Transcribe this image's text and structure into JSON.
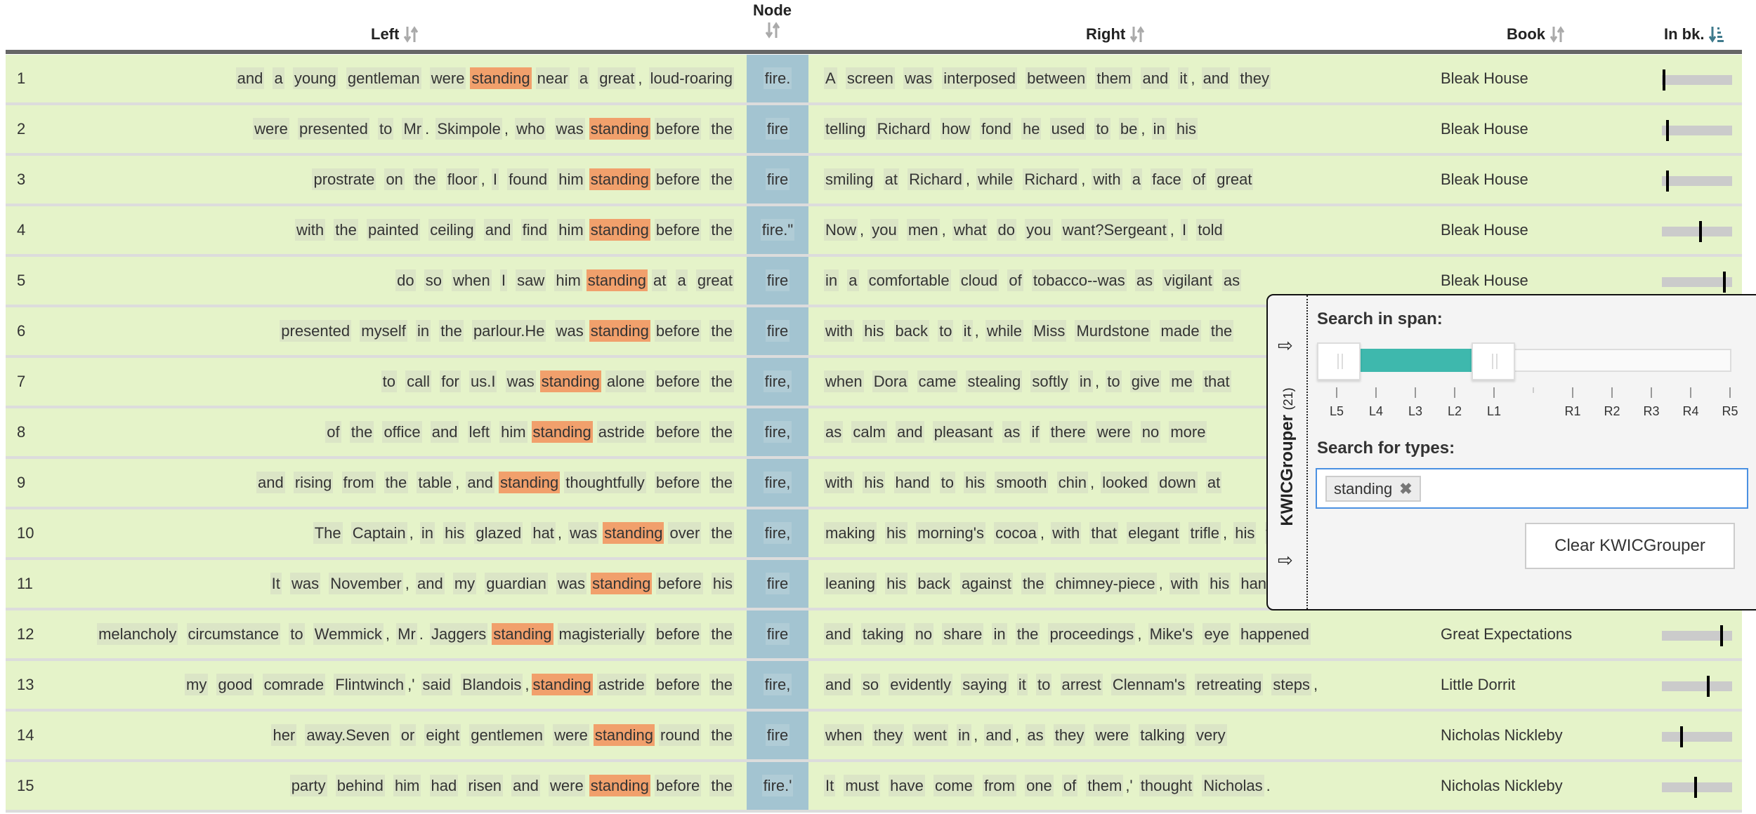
{
  "columns": {
    "left": "Left",
    "node": "Node",
    "right": "Right",
    "book": "Book",
    "in_book": "In bk."
  },
  "colors": {
    "row_bg": "#e5f3c9",
    "node_bg": "#a3c4d1",
    "keyword_bg": "#f1a06c",
    "slider_fill": "#3eb8ad",
    "input_focus": "#4a90e2"
  },
  "rows": [
    {
      "n": "1",
      "pre": "and a young gentleman were",
      "kw": "standing",
      "post": "near a great, loud-roaring",
      "node": "fire.",
      "right": "A screen was interposed between them and it, and they",
      "book": "Bleak House",
      "pos": 0.03
    },
    {
      "n": "2",
      "pre": "were presented to Mr. Skimpole, who was",
      "kw": "standing",
      "post": "before the",
      "node": "fire",
      "right": "telling Richard how fond he used to be, in his",
      "book": "Bleak House",
      "pos": 0.08
    },
    {
      "n": "3",
      "pre": "prostrate on the floor, I found him",
      "kw": "standing",
      "post": "before the",
      "node": "fire",
      "right": "smiling at Richard, while Richard, with a face of great",
      "book": "Bleak House",
      "pos": 0.08
    },
    {
      "n": "4",
      "pre": "with the painted ceiling and find him",
      "kw": "standing",
      "post": "before the",
      "node": "fire.\"",
      "right": "Now, you men, what do you want?Sergeant, I told",
      "book": "Bleak House",
      "pos": 0.55
    },
    {
      "n": "5",
      "pre": "do so when I saw him",
      "kw": "standing",
      "post": "at a great",
      "node": "fire",
      "right": "in a comfortable cloud of tobacco--was as vigilant as",
      "book": "Bleak House",
      "pos": 0.89
    },
    {
      "n": "6",
      "pre": "presented myself in the parlour.He was",
      "kw": "standing",
      "post": "before the",
      "node": "fire",
      "right": "with his back to it, while Miss Murdstone made the"
    },
    {
      "n": "7",
      "pre": "to call for us.I was",
      "kw": "standing",
      "post": "alone before the",
      "node": "fire,",
      "right": "when Dora came stealing softly in, to give me that"
    },
    {
      "n": "8",
      "pre": "of the office and left him",
      "kw": "standing",
      "post": "astride before the",
      "node": "fire,",
      "right": "as calm and pleasant as if there were no more"
    },
    {
      "n": "9",
      "pre": "and rising from the table, and",
      "kw": "standing",
      "post": "thoughtfully before the",
      "node": "fire,",
      "right": "with his hand to his smooth chin, looked down at"
    },
    {
      "n": "10",
      "pre": "The Captain, in his glazed hat, was",
      "kw": "standing",
      "post": "over the",
      "node": "fire,",
      "right": "making his morning's cocoa, with that elegant trifle, his w"
    },
    {
      "n": "11",
      "pre": "It was November, and my guardian was",
      "kw": "standing",
      "post": "before his",
      "node": "fire",
      "right": "leaning his back against the chimney-piece, with his han"
    },
    {
      "n": "12",
      "pre": "melancholy circumstance to Wemmick, Mr. Jaggers",
      "kw": "standing",
      "post": "magisterially before the",
      "node": "fire",
      "right": "and taking no share in the proceedings, Mike's eye happened",
      "book": "Great Expectations",
      "pos": 0.85
    },
    {
      "n": "13",
      "pre": "my good comrade Flintwinch,' said Blandois,",
      "kw": "standing",
      "post": "astride before the",
      "node": "fire,",
      "right": "and so evidently saying it to arrest Clennam's retreating steps,",
      "book": "Little Dorrit",
      "pos": 0.66
    },
    {
      "n": "14",
      "pre": "her away.Seven or eight gentlemen were",
      "kw": "standing",
      "post": "round the",
      "node": "fire",
      "right": "when they went in, and, as they were talking very",
      "book": "Nicholas Nickleby",
      "pos": 0.28
    },
    {
      "n": "15",
      "pre": "party behind him had risen and were",
      "kw": "standing",
      "post": "before the",
      "node": "fire.'",
      "right": "It must have come from one of them,' thought Nicholas.",
      "book": "Nicholas Nickleby",
      "pos": 0.48
    }
  ],
  "kwicgrouper": {
    "title": "KWICGrouper",
    "count": "(21)",
    "span_label": "Search in span:",
    "span_ticks": [
      "L5",
      "L4",
      "L3",
      "L2",
      "L1",
      "",
      "R1",
      "R2",
      "R3",
      "R4",
      "R5"
    ],
    "span_selected": [
      "L5",
      "L1"
    ],
    "types_label": "Search for types:",
    "types": [
      "standing"
    ],
    "clear_label": "Clear KWICGrouper",
    "icons": [
      "arrow-right-icon",
      "remove-tag-icon"
    ]
  }
}
